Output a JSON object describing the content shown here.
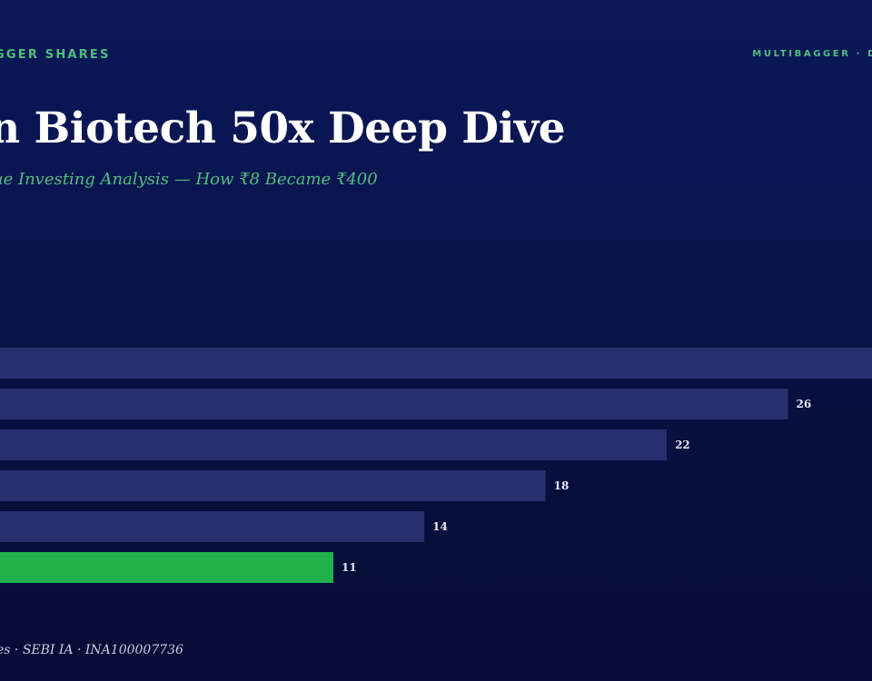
{
  "header": {
    "brand_left": "GGER SHARES",
    "brand_right": "MULTIBAGGER · D"
  },
  "title": "n Biotech 50x Deep Dive",
  "subtitle": "ue Investing Analysis — How ₹8 Became ₹400",
  "footer": "es · SEBI IA · INA100007736",
  "colors": {
    "bar_default": "#27306d",
    "bar_highlight": "#22b24c",
    "title": "#ffffff",
    "accent": "#4fbf7e"
  },
  "chart_data": {
    "type": "bar",
    "orientation": "horizontal",
    "values": [
      30,
      26,
      22,
      18,
      14,
      11
    ],
    "value_labels": [
      "",
      "26",
      "22",
      "18",
      "14",
      "11"
    ],
    "highlight_index": 5,
    "xlim": [
      0,
      30
    ]
  }
}
